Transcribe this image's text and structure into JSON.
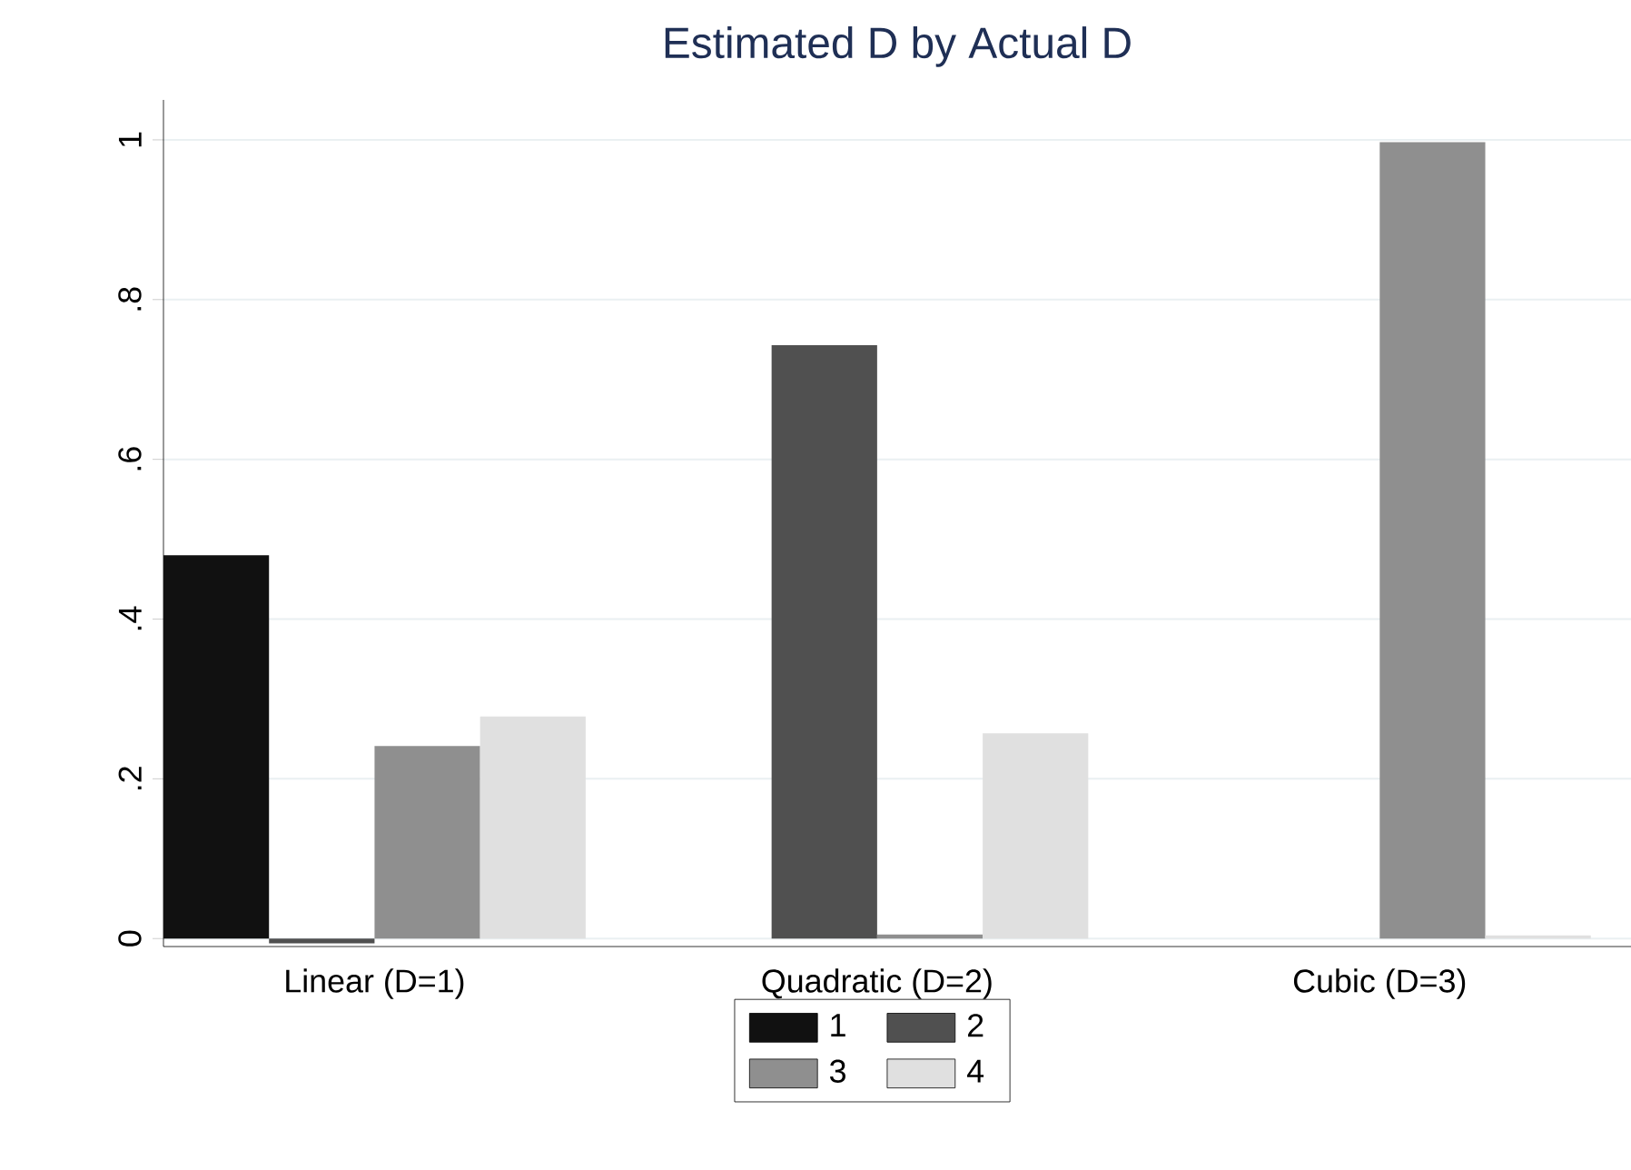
{
  "chart_data": {
    "type": "bar",
    "title": "Estimated D by Actual D",
    "categories": [
      "Linear (D=1)",
      "Quadratic (D=2)",
      "Cubic (D=3)"
    ],
    "series": [
      {
        "name": "1",
        "color": "#111111",
        "values": [
          0.48,
          0,
          0
        ]
      },
      {
        "name": "2",
        "color": "#505050",
        "values": [
          -0.006,
          0.743,
          0
        ]
      },
      {
        "name": "3",
        "color": "#8f8f8f",
        "values": [
          0.241,
          0.005,
          0.997
        ]
      },
      {
        "name": "4",
        "color": "#e0e0e0",
        "values": [
          0.278,
          0.257,
          0.004
        ]
      }
    ],
    "ylim": [
      -0.01,
      1.05
    ],
    "yticks": [
      0,
      {
        "value": 0.2,
        "label": ".2"
      },
      {
        "value": 0.4,
        "label": ".4"
      },
      {
        "value": 0.6,
        "label": ".6"
      },
      {
        "value": 0.8,
        "label": ".8"
      },
      1
    ],
    "grid": "y",
    "legend": "bottom"
  }
}
